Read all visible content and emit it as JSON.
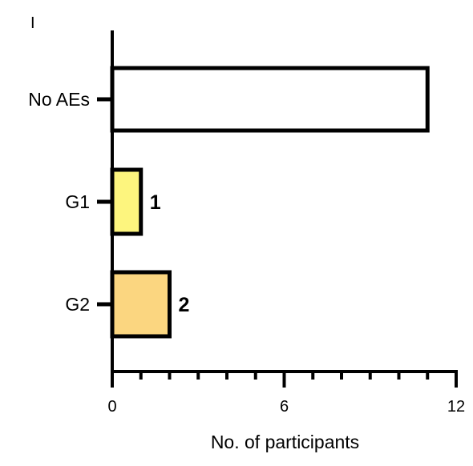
{
  "panel_label": "I",
  "colors": {
    "axis": "#000000",
    "bar_stroke": "#000000",
    "no_aes": "#ffffff",
    "g1": "#fdf57e",
    "g2": "#fbd680"
  },
  "chart_data": {
    "type": "bar",
    "orientation": "horizontal",
    "categories": [
      "No AEs",
      "G1",
      "G2"
    ],
    "values": [
      11,
      1,
      2
    ],
    "data_labels": [
      "",
      "1",
      "2"
    ],
    "bar_colors": [
      "#ffffff",
      "#fdf57e",
      "#fbd680"
    ],
    "title": "",
    "xlabel": "No. of participants",
    "ylabel": "",
    "xlim": [
      0,
      12
    ],
    "x_ticks": [
      0,
      6,
      12
    ],
    "x_minor_step": 1,
    "grid": false,
    "legend": "none"
  }
}
